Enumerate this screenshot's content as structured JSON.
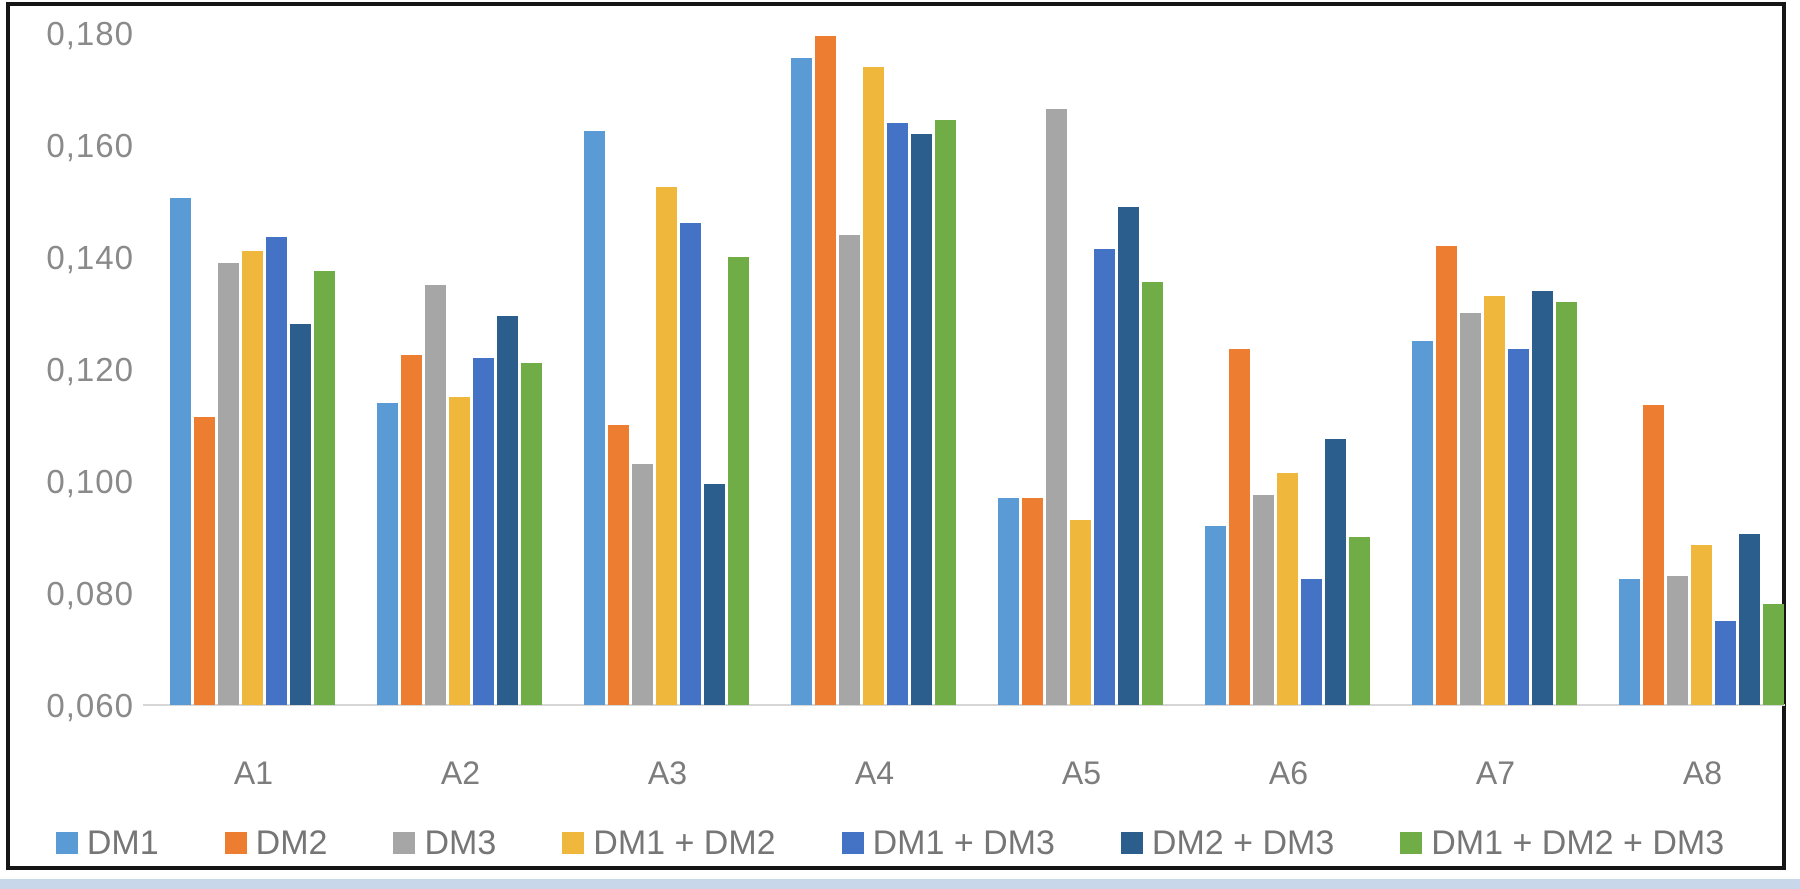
{
  "chart_data": {
    "type": "bar",
    "title": "",
    "xlabel": "",
    "ylabel": "",
    "grid": false,
    "legend_position": "bottom",
    "decimal_separator": ",",
    "categories": [
      "A1",
      "A2",
      "A3",
      "A4",
      "A5",
      "A6",
      "A7",
      "A8"
    ],
    "series": [
      {
        "name": "DM1",
        "color": "#5B9BD5",
        "values": [
          0.1505,
          0.114,
          0.1625,
          0.1755,
          0.097,
          0.092,
          0.125,
          0.0825
        ]
      },
      {
        "name": "DM2",
        "color": "#ED7D31",
        "values": [
          0.1115,
          0.1225,
          0.11,
          0.1795,
          0.097,
          0.1235,
          0.142,
          0.1135
        ]
      },
      {
        "name": "DM3",
        "color": "#A6A6A6",
        "values": [
          0.139,
          0.135,
          0.103,
          0.144,
          0.1665,
          0.0975,
          0.13,
          0.083
        ]
      },
      {
        "name": "DM1 + DM2",
        "color": "#EFB83C",
        "values": [
          0.141,
          0.115,
          0.1525,
          0.174,
          0.093,
          0.1015,
          0.133,
          0.0885
        ]
      },
      {
        "name": "DM1 + DM3",
        "color": "#4472C4",
        "values": [
          0.1435,
          0.122,
          0.146,
          0.164,
          0.1415,
          0.0825,
          0.1235,
          0.075
        ]
      },
      {
        "name": "DM2 + DM3",
        "color": "#2B5D8D",
        "values": [
          0.128,
          0.1295,
          0.0995,
          0.162,
          0.149,
          0.1075,
          0.134,
          0.0905
        ]
      },
      {
        "name": "DM1 + DM2 + DM3",
        "color": "#70AD47",
        "values": [
          0.1375,
          0.121,
          0.14,
          0.1645,
          0.1355,
          0.09,
          0.132,
          0.078
        ]
      }
    ],
    "y_axis": {
      "min": 0.06,
      "max": 0.18,
      "step": 0.02,
      "tick_labels": [
        "0,060",
        "0,080",
        "0,100",
        "0,120",
        "0,140",
        "0,160",
        "0,180"
      ]
    }
  },
  "frame": {
    "border_color": "#151515",
    "bottom_strip_color": "#C9D7EB",
    "baseline_color": "#D6D6D6"
  }
}
